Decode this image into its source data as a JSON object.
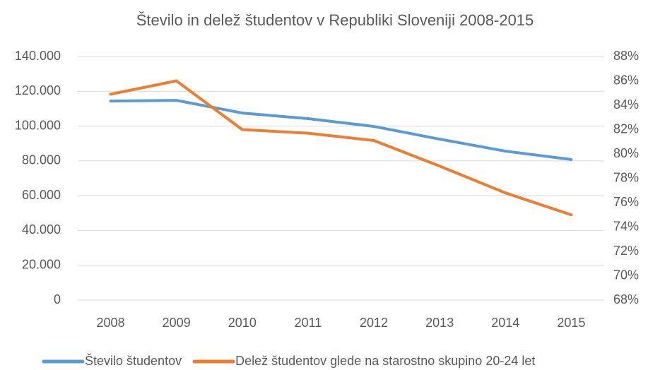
{
  "chart_data": {
    "type": "line",
    "title": "Število in delež študentov v Republiki Sloveniji 2008-2015",
    "categories": [
      "2008",
      "2009",
      "2010",
      "2011",
      "2012",
      "2013",
      "2014",
      "2015"
    ],
    "series": [
      {
        "name": "Število študentov",
        "color": "#5b9bd5",
        "values": [
          114400,
          114800,
          107500,
          104300,
          99800,
          92500,
          85600,
          80800
        ]
      },
      {
        "name": "Delež študentov glede na starostno skupino 20-24 let",
        "color": "#ed7d31",
        "axis": "y2",
        "values": [
          84.9,
          86.0,
          82.0,
          81.7,
          81.1,
          79.0,
          76.8,
          75.0
        ]
      }
    ],
    "ylim": [
      0,
      140000
    ],
    "yticks": [
      0,
      {
        "value": 20000,
        "label": "20.000"
      },
      {
        "value": 40000,
        "label": "40.000"
      },
      {
        "value": 60000,
        "label": "60.000"
      },
      {
        "value": 80000,
        "label": "80.000"
      },
      {
        "value": 100000,
        "label": "100.000"
      },
      {
        "value": 120000,
        "label": "120.000"
      },
      {
        "value": 140000,
        "label": "140.000"
      }
    ],
    "y2lim": [
      68,
      88
    ],
    "y2ticks": [
      {
        "value": 68,
        "label": "68%"
      },
      {
        "value": 70,
        "label": "70%"
      },
      {
        "value": 72,
        "label": "72%"
      },
      {
        "value": 74,
        "label": "74%"
      },
      {
        "value": 76,
        "label": "76%"
      },
      {
        "value": 78,
        "label": "78%"
      },
      {
        "value": 80,
        "label": "80%"
      },
      {
        "value": 82,
        "label": "82%"
      },
      {
        "value": 84,
        "label": "84%"
      },
      {
        "value": 86,
        "label": "86%"
      },
      {
        "value": 88,
        "label": "88%"
      }
    ],
    "grid": true
  }
}
